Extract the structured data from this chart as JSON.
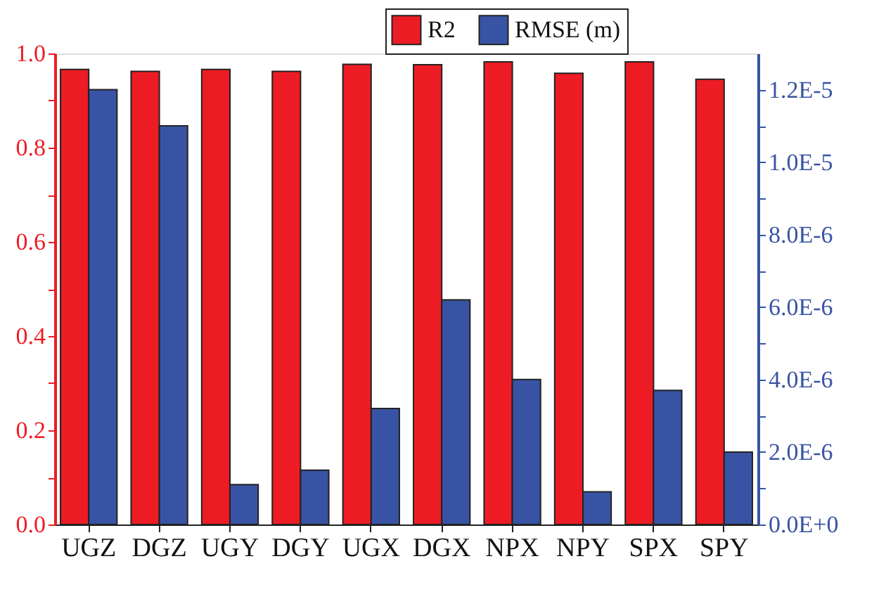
{
  "chart_data": {
    "type": "bar",
    "categories": [
      "UGZ",
      "DGZ",
      "UGY",
      "DGY",
      "UGX",
      "DGX",
      "NPX",
      "NPY",
      "SPX",
      "SPY"
    ],
    "series": [
      {
        "name": "R2",
        "color": "#ed1c24",
        "axis": "y",
        "values": [
          0.966,
          0.962,
          0.966,
          0.962,
          0.977,
          0.976,
          0.982,
          0.958,
          0.982,
          0.945
        ]
      },
      {
        "name": "RMSE (m)",
        "color": "#3953a4",
        "axis": "y2",
        "values": [
          1.2e-05,
          1.1e-05,
          1.1e-06,
          1.5e-06,
          3.2e-06,
          6.2e-06,
          4e-06,
          9e-07,
          3.7e-06,
          2e-06
        ]
      }
    ],
    "ylim": [
      0,
      1.0
    ],
    "yticks": [
      {
        "value": 0,
        "label": "0.0"
      },
      {
        "value": 0.1,
        "label": null
      },
      {
        "value": 0.2,
        "label": "0.2"
      },
      {
        "value": 0.3,
        "label": null
      },
      {
        "value": 0.4,
        "label": "0.4"
      },
      {
        "value": 0.5,
        "label": null
      },
      {
        "value": 0.6,
        "label": "0.6"
      },
      {
        "value": 0.7,
        "label": null
      },
      {
        "value": 0.8,
        "label": "0.8"
      },
      {
        "value": 0.9,
        "label": null
      },
      {
        "value": 1.0,
        "label": "1.0"
      }
    ],
    "y2lim": [
      0,
      1.3e-05
    ],
    "y2ticks": [
      {
        "value": 0,
        "label": "0.0E+0"
      },
      {
        "value": 1e-06,
        "label": null
      },
      {
        "value": 2e-06,
        "label": "2.0E-6"
      },
      {
        "value": 3e-06,
        "label": null
      },
      {
        "value": 4e-06,
        "label": "4.0E-6"
      },
      {
        "value": 5e-06,
        "label": null
      },
      {
        "value": 6e-06,
        "label": "6.0E-6"
      },
      {
        "value": 7e-06,
        "label": null
      },
      {
        "value": 8e-06,
        "label": "8.0E-6"
      },
      {
        "value": 9e-06,
        "label": null
      },
      {
        "value": 1e-05,
        "label": "1.0E-5"
      },
      {
        "value": 1.1e-05,
        "label": null
      },
      {
        "value": 1.2e-05,
        "label": "1.2E-5"
      }
    ],
    "grid": false,
    "legend": "top right"
  }
}
